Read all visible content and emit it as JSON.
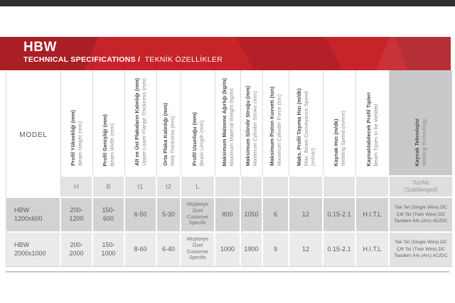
{
  "page": {
    "top_bar_color": "#2f2f31",
    "background_color": "#ffffff",
    "accent_red": "#c6232b"
  },
  "banner": {
    "title": "HBW",
    "subtitle_en": "TECHNICAL SPECIFICATIONS /",
    "subtitle_tr": "TEKNİK ÖZELLİKLER"
  },
  "table": {
    "model_label": "MODEL",
    "columns": [
      {
        "tr": "Profil Yüksekliği (mm)",
        "en": "Beam Height (mm)",
        "symbol": "H"
      },
      {
        "tr": "Profil Genişliği (mm)",
        "en": "Beam Width (mm)",
        "symbol": "B"
      },
      {
        "tr": "Alt ve Üst Plakaların Kalınlığı (mm)",
        "en": "Upper-Lower Flange Thickness (mm)",
        "symbol": "t1"
      },
      {
        "tr": "Orta Plaka Kalınlığı (mm)",
        "en": "Web Thickness (mm)",
        "symbol": "t2"
      },
      {
        "tr": "Profil Uzunluğu (mm)",
        "en": "Beam Length (mm)",
        "symbol": "L"
      },
      {
        "tr": "Maksimum Malzeme Ağırlığı (kg/m)",
        "en": "Maximum Material Weight (kg/m)",
        "symbol": ""
      },
      {
        "tr": "Maksimum Silindir Stroğu (mm)",
        "en": "Maximum Cylinder Stroke (mm)",
        "symbol": ""
      },
      {
        "tr": "Maksimum Piston Kuvveti (ton)",
        "en": "Maximum Cylinder Force (ton)",
        "symbol": ""
      },
      {
        "tr": "Maks. Profil Taşıma Hızı (m/dk)",
        "en": "Max. Beam Conveyance Speed (m/min)",
        "symbol": ""
      },
      {
        "tr": "Kaynak Hızı (m/dk)",
        "en": "Welding Speed (m/min)",
        "symbol": ""
      },
      {
        "tr": "Kaynatılabilecek Profil Tipleri",
        "en": "Beam Types to be Welded",
        "symbol": ""
      },
      {
        "tr": "Kaynak Teknolojisi",
        "en": "Welding Technology",
        "symbol": "TozAltı (SubMerged)"
      }
    ],
    "rows": [
      {
        "model": "HBW 1200x600",
        "beam_height": "200-1200",
        "beam_width": "150-600",
        "flange_thickness": "6-50",
        "web_thickness": "5-30",
        "beam_length": "Müşteriye Özel Customer Specific",
        "max_material_weight": "800",
        "max_cylinder_stroke": "1050",
        "max_cylinder_force": "6",
        "max_conveyance_speed": "12",
        "welding_speed": "0.15-2.1",
        "beam_types": "H.I.T.L",
        "welding_technology": "Tek Tel (Single Wire) DC Çift Tel (Twin Wire) DC Tandem Ark (Arc) AC/DC"
      },
      {
        "model": "HBW 2000x1000",
        "beam_height": "200-2000",
        "beam_width": "150-1000",
        "flange_thickness": "8-60",
        "web_thickness": "6-40",
        "beam_length": "Müşteriye Özel Customer Specific",
        "max_material_weight": "1000",
        "max_cylinder_stroke": "1900",
        "max_cylinder_force": "9",
        "max_conveyance_speed": "12",
        "welding_speed": "0.15-2.1",
        "beam_types": "H.I.T.L",
        "welding_technology": "Tek Tel (Single Wire) DC Çift Tel (Twin Wire) DC Tandem Ark (Arc) AC/DC"
      }
    ]
  }
}
